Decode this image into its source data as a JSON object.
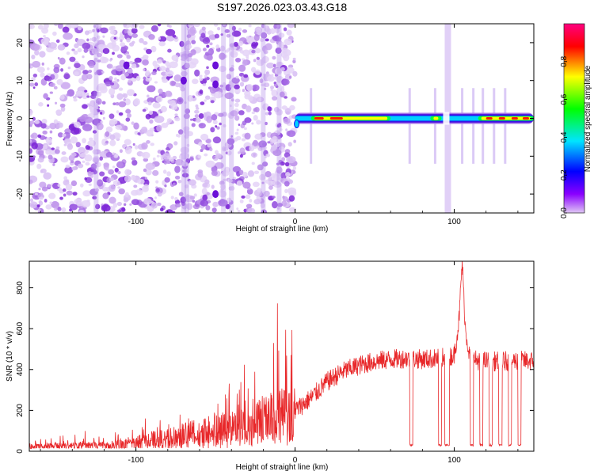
{
  "title": "S197.2026.023.03.43.G18",
  "colors": {
    "line": "#e8282a",
    "frame": "#000000"
  },
  "chart_data": [
    {
      "type": "heatmap",
      "name": "spectrogram",
      "xlabel": "Height of straight line (km)",
      "ylabel": "Frequency (Hz)",
      "xlim": [
        -167,
        150
      ],
      "ylim": [
        -25,
        25
      ],
      "xticks": [
        -100,
        0,
        100
      ],
      "yticks": [
        -20,
        -10,
        0,
        10,
        20
      ],
      "colorbar": {
        "label": "Normalized spectral amplitude",
        "range": [
          0,
          1
        ],
        "ticks": [
          0.0,
          0.2,
          0.4,
          0.6,
          0.8
        ],
        "tick_labels": [
          "0.0",
          "0.2",
          "0.4",
          "0.6",
          "0.8"
        ],
        "colormap": [
          "#e0c8f4",
          "#8a00ff",
          "#0000ff",
          "#00e5ff",
          "#00ff00",
          "#ffff00",
          "#ff0000",
          "#ff0080"
        ]
      },
      "noise_region_km": [
        -167,
        0
      ],
      "signal_track": {
        "frequency_hz": 0,
        "start_km": 0,
        "end_km": 150,
        "peak_segments_km": [
          [
            10,
            60
          ],
          [
            85,
            92
          ],
          [
            115,
            150
          ]
        ],
        "gap_km": [
          93,
          97
        ]
      }
    },
    {
      "type": "line",
      "name": "snr",
      "xlabel": "Height of straight line (km)",
      "ylabel": "SNR (10 * v/v)",
      "xlim": [
        -167,
        150
      ],
      "ylim": [
        0,
        930
      ],
      "xticks": [
        -100,
        0,
        100
      ],
      "yticks": [
        0,
        200,
        400,
        600,
        800
      ],
      "series": [
        {
          "name": "SNR",
          "x": [
            -167,
            -140,
            -120,
            -100,
            -80,
            -60,
            -40,
            -20,
            -10,
            0,
            10,
            20,
            30,
            40,
            50,
            60,
            70,
            80,
            90,
            100,
            103,
            105,
            107,
            110,
            120,
            130,
            140,
            150
          ],
          "values": [
            25,
            30,
            35,
            50,
            70,
            100,
            140,
            170,
            190,
            200,
            260,
            340,
            390,
            420,
            440,
            450,
            455,
            450,
            455,
            470,
            640,
            930,
            600,
            450,
            440,
            440,
            445,
            440
          ],
          "dropouts_km": [
            [
              72,
              74
            ],
            [
              90,
              92
            ],
            [
              94,
              97
            ],
            [
              110,
              112
            ],
            [
              116,
              118
            ],
            [
              122,
              124
            ],
            [
              128,
              130
            ],
            [
              134,
              136
            ],
            [
              140,
              142
            ]
          ],
          "dropout_level": 25
        }
      ]
    }
  ]
}
